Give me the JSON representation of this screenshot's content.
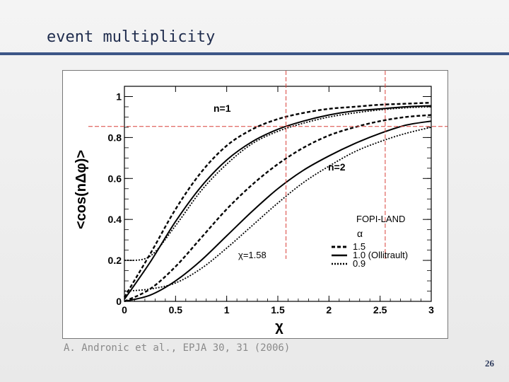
{
  "slide": {
    "title": "event multiplicity",
    "citation": "A. Andronic et al., EPJA 30, 31 (2006)",
    "page_number": "26"
  },
  "colors": {
    "title_rule": "#3d5687",
    "curve": "#000000",
    "marker_line": "#d9413a"
  },
  "chart_data": {
    "type": "line",
    "xlabel": "χ",
    "ylabel": "<cos(nΔφ)>",
    "xlim": [
      0,
      3
    ],
    "ylim": [
      0,
      1.05
    ],
    "x_ticks": [
      "0",
      "0.5",
      "1",
      "1.5",
      "2",
      "2.5",
      "3"
    ],
    "y_ticks": [
      "0",
      "0.2",
      "0.4",
      "0.6",
      "0.8",
      "1"
    ],
    "grid": false,
    "annotations": {
      "n1": "n=1",
      "n2": "n=2",
      "experiment": "FOPI-LAND",
      "chi_marker": "χ=1.58"
    },
    "legend": {
      "header": "α",
      "position": "bottom-right",
      "entries": [
        "1.5",
        "1.0 (Ollitrault)",
        "0.9"
      ]
    },
    "reference_lines": {
      "vertical_x": [
        1.58,
        2.55
      ],
      "horizontal_y": [
        0.84
      ]
    },
    "x": [
      0,
      0.25,
      0.5,
      0.75,
      1.0,
      1.25,
      1.5,
      1.75,
      2.0,
      2.25,
      2.5,
      2.75,
      3.0
    ],
    "series": [
      {
        "name": "1.5",
        "group": "n=1",
        "style": "dashed",
        "values": [
          0.02,
          0.23,
          0.45,
          0.63,
          0.76,
          0.84,
          0.89,
          0.92,
          0.94,
          0.95,
          0.96,
          0.965,
          0.97
        ]
      },
      {
        "name": "1.0 (Ollitrault)",
        "group": "n=1",
        "style": "solid",
        "values": [
          0.01,
          0.19,
          0.39,
          0.56,
          0.69,
          0.78,
          0.84,
          0.88,
          0.91,
          0.93,
          0.94,
          0.95,
          0.955
        ]
      },
      {
        "name": "0.9",
        "group": "n=1",
        "style": "dotted",
        "values": [
          0.2,
          0.22,
          0.37,
          0.54,
          0.67,
          0.77,
          0.83,
          0.87,
          0.9,
          0.92,
          0.935,
          0.945,
          0.95
        ]
      },
      {
        "name": "1.5",
        "group": "n=2",
        "style": "dashed",
        "values": [
          0.0,
          0.06,
          0.17,
          0.31,
          0.45,
          0.57,
          0.67,
          0.75,
          0.81,
          0.85,
          0.88,
          0.9,
          0.91
        ]
      },
      {
        "name": "1.0 (Ollitrault)",
        "group": "n=2",
        "style": "solid",
        "values": [
          0.0,
          0.03,
          0.1,
          0.2,
          0.32,
          0.44,
          0.55,
          0.64,
          0.71,
          0.77,
          0.82,
          0.86,
          0.88
        ]
      },
      {
        "name": "0.9",
        "group": "n=2",
        "style": "dotted",
        "values": [
          0.05,
          0.06,
          0.09,
          0.16,
          0.26,
          0.37,
          0.48,
          0.58,
          0.66,
          0.73,
          0.78,
          0.82,
          0.85
        ]
      }
    ]
  }
}
